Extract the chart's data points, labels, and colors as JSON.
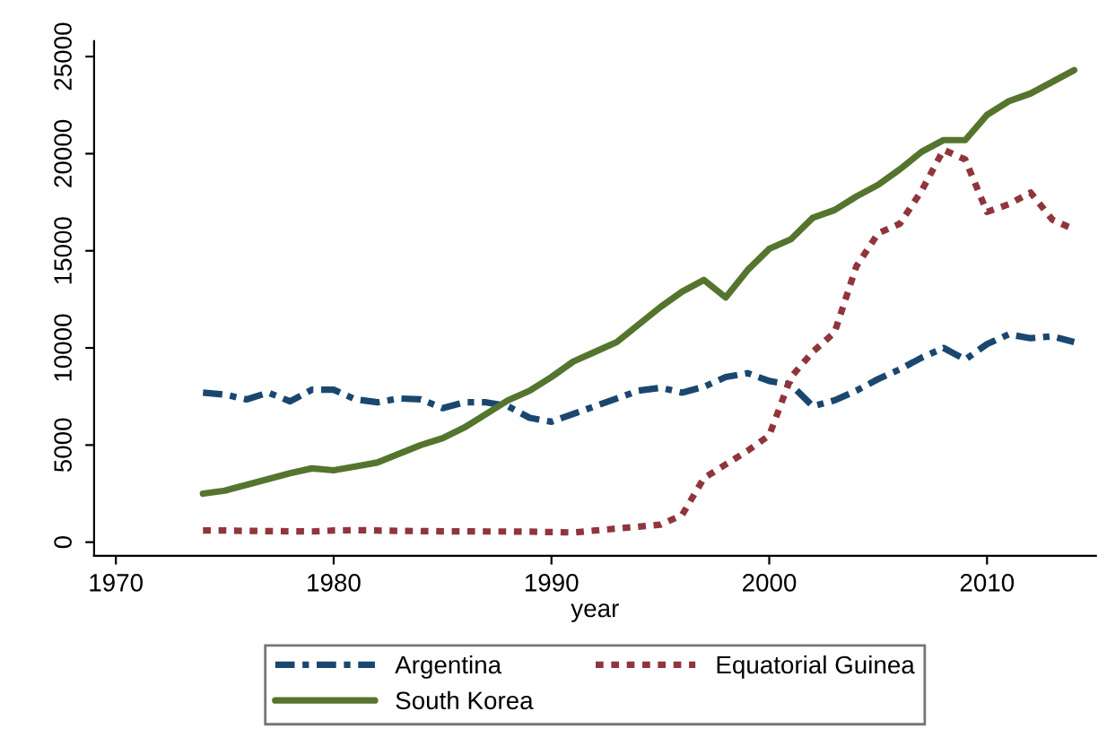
{
  "chart_data": {
    "type": "line",
    "xlabel": "year",
    "x": [
      1974,
      1975,
      1976,
      1977,
      1978,
      1979,
      1980,
      1981,
      1982,
      1983,
      1984,
      1985,
      1986,
      1987,
      1988,
      1989,
      1990,
      1991,
      1992,
      1993,
      1994,
      1995,
      1996,
      1997,
      1998,
      1999,
      2000,
      2001,
      2002,
      2003,
      2004,
      2005,
      2006,
      2007,
      2008,
      2009,
      2010,
      2011,
      2012,
      2013,
      2014
    ],
    "series": [
      {
        "name": "Argentina",
        "color": "#1a476f",
        "line_style": "dashed",
        "values": [
          7700,
          7600,
          7350,
          7700,
          7250,
          7850,
          7850,
          7350,
          7200,
          7400,
          7350,
          6900,
          7200,
          7200,
          7000,
          6400,
          6200,
          6600,
          7000,
          7400,
          7800,
          7950,
          7700,
          8000,
          8500,
          8700,
          8300,
          8100,
          7000,
          7300,
          7800,
          8400,
          8900,
          9500,
          10000,
          9400,
          10200,
          10700,
          10500,
          10600,
          10300
        ]
      },
      {
        "name": "Equatorial Guinea",
        "color": "#90353b",
        "line_style": "dotted",
        "values": [
          600,
          600,
          580,
          570,
          560,
          550,
          600,
          620,
          600,
          580,
          570,
          560,
          560,
          550,
          550,
          540,
          520,
          500,
          600,
          700,
          800,
          900,
          1400,
          3300,
          4000,
          4700,
          5500,
          8500,
          9800,
          10800,
          14200,
          15900,
          16400,
          18100,
          20200,
          19700,
          17000,
          17400,
          18000,
          16600,
          16100
        ]
      },
      {
        "name": "South Korea",
        "color": "#55752f",
        "line_style": "solid",
        "values": [
          2500,
          2650,
          2950,
          3250,
          3550,
          3800,
          3700,
          3900,
          4100,
          4550,
          5000,
          5350,
          5900,
          6600,
          7300,
          7800,
          8500,
          9300,
          9800,
          10300,
          11200,
          12100,
          12900,
          13500,
          12600,
          14000,
          15100,
          15600,
          16700,
          17100,
          17800,
          18400,
          19200,
          20100,
          20700,
          20700,
          22000,
          22700,
          23100,
          23700,
          24300
        ]
      }
    ],
    "xlim": [
      1969,
      2015
    ],
    "xticks": [
      1970,
      1980,
      1990,
      2000,
      2010
    ],
    "ylim": [
      -700,
      25800
    ],
    "yticks": [
      0,
      5000,
      10000,
      15000,
      20000,
      25000
    ],
    "grid": false,
    "legend": "bottom",
    "marker": "none"
  }
}
